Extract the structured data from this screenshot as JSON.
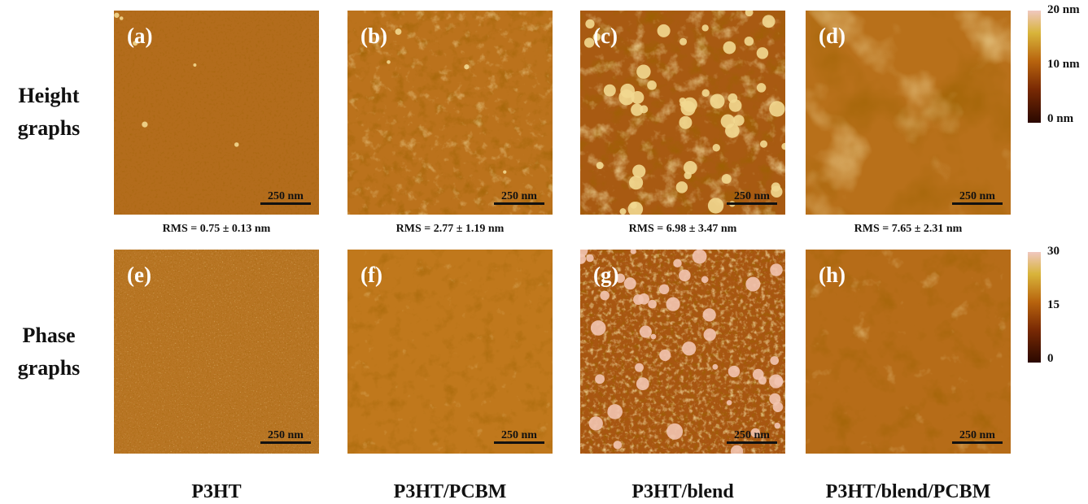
{
  "row_labels": [
    "Height graphs",
    "Phase graphs"
  ],
  "panels": [
    {
      "label": "(a)",
      "scale_bar": "250 nm"
    },
    {
      "label": "(b)",
      "scale_bar": "250 nm"
    },
    {
      "label": "(c)",
      "scale_bar": "250 nm"
    },
    {
      "label": "(d)",
      "scale_bar": "250 nm"
    },
    {
      "label": "(e)",
      "scale_bar": "250 nm"
    },
    {
      "label": "(f)",
      "scale_bar": "250 nm"
    },
    {
      "label": "(g)",
      "scale_bar": "250 nm"
    },
    {
      "label": "(h)",
      "scale_bar": "250 nm"
    }
  ],
  "rms": [
    "RMS = 0.75 ± 0.13 nm",
    "RMS = 2.77 ± 1.19 nm",
    "RMS = 6.98 ± 3.47 nm",
    "RMS = 7.65 ± 2.31 nm"
  ],
  "colorbars": [
    {
      "ticks": [
        "20 nm",
        "10 nm",
        "0 nm"
      ]
    },
    {
      "ticks": [
        "30",
        "15",
        "0"
      ]
    }
  ],
  "columns": [
    "P3HT",
    "P3HT/PCBM",
    "P3HT/blend",
    "P3HT/blend/PCBM"
  ]
}
